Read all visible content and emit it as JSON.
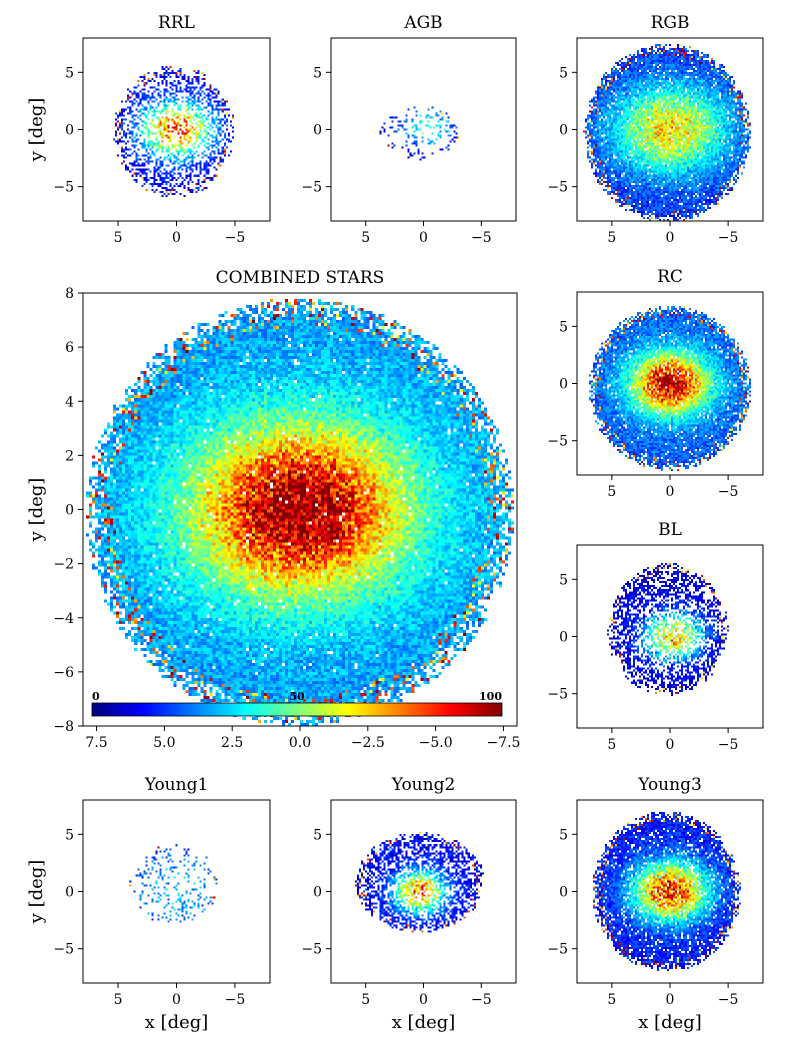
{
  "chart_data": [
    {
      "id": "rrl",
      "type": "heatmap",
      "title": "RRL",
      "xlabel": "",
      "ylabel": "y [deg]",
      "xlim": [
        8,
        -8
      ],
      "ylim": [
        -8,
        8
      ],
      "xticks": [
        5,
        0,
        -5
      ],
      "yticks": [
        5,
        0,
        -5
      ],
      "xtick_labels": [
        "5",
        "0",
        "−5"
      ],
      "ytick_labels": [
        "5",
        "0",
        "−5"
      ],
      "extent": {
        "rx": 5.2,
        "ry": 5.8,
        "cx": 0.2,
        "cy": -0.2,
        "peak_x": 0,
        "peak_y": 0,
        "peak": 90,
        "spread": 2.0,
        "bg": 12,
        "density": 0.45
      }
    },
    {
      "id": "agb",
      "type": "heatmap",
      "title": "AGB",
      "xlabel": "",
      "ylabel": "",
      "xlim": [
        8,
        -8
      ],
      "ylim": [
        -8,
        8
      ],
      "xticks": [
        5,
        0,
        -5
      ],
      "yticks": [
        5,
        0,
        -5
      ],
      "xtick_labels": [
        "5",
        "0",
        "−5"
      ],
      "ytick_labels": [
        "5",
        "0",
        "−5"
      ],
      "extent": {
        "rx": 3.5,
        "ry": 2.4,
        "cx": 0.3,
        "cy": -0.3,
        "peak_x": -0.3,
        "peak_y": 0.2,
        "peak": 45,
        "spread": 1.6,
        "bg": 8,
        "density": 0.22
      }
    },
    {
      "id": "rgb",
      "type": "heatmap",
      "title": "RGB",
      "xlabel": "",
      "ylabel": "",
      "xlim": [
        8,
        -8
      ],
      "ylim": [
        -8,
        8
      ],
      "xticks": [
        5,
        0,
        -5
      ],
      "yticks": [
        5,
        0,
        -5
      ],
      "xtick_labels": [
        "5",
        "0",
        "−5"
      ],
      "ytick_labels": [
        "5",
        "0",
        "−5"
      ],
      "extent": {
        "rx": 7.2,
        "ry": 7.8,
        "cx": 0.2,
        "cy": -0.3,
        "peak_x": 0,
        "peak_y": 0,
        "peak": 62,
        "spread": 3.2,
        "bg": 18,
        "density": 0.95
      }
    },
    {
      "id": "combined",
      "type": "heatmap",
      "title": "COMBINED STARS",
      "xlabel": "",
      "ylabel": "y [deg]",
      "xlim": [
        8,
        -8
      ],
      "ylim": [
        -8,
        8
      ],
      "xticks": [
        7.5,
        5.0,
        2.5,
        0.0,
        -2.5,
        -5.0,
        -7.5
      ],
      "yticks": [
        8,
        6,
        4,
        2,
        0,
        -2,
        -4,
        -6,
        -8
      ],
      "xtick_labels": [
        "7.5",
        "5.0",
        "2.5",
        "0.0",
        "−2.5",
        "−5.0",
        "−7.5"
      ],
      "ytick_labels": [
        "8",
        "6",
        "4",
        "2",
        "0",
        "−2",
        "−4",
        "−6",
        "−8"
      ],
      "extent": {
        "rx": 7.9,
        "ry": 7.9,
        "cx": 0.0,
        "cy": -0.1,
        "peak_x": 0,
        "peak_y": 0,
        "peak": 95,
        "spread": 2.7,
        "bg": 28,
        "density": 0.98
      }
    },
    {
      "id": "rc",
      "type": "heatmap",
      "title": "RC",
      "xlabel": "",
      "ylabel": "",
      "xlim": [
        8,
        -8
      ],
      "ylim": [
        -8,
        8
      ],
      "xticks": [
        5,
        0,
        -5
      ],
      "yticks": [
        5,
        0,
        -5
      ],
      "xtick_labels": [
        "5",
        "0",
        "−5"
      ],
      "ytick_labels": [
        "5",
        "0",
        "−5"
      ],
      "extent": {
        "rx": 7.0,
        "ry": 7.2,
        "cx": 0.0,
        "cy": -0.4,
        "peak_x": 0,
        "peak_y": 0,
        "peak": 95,
        "spread": 2.3,
        "bg": 22,
        "density": 0.95
      }
    },
    {
      "id": "bl",
      "type": "heatmap",
      "title": "BL",
      "xlabel": "",
      "ylabel": "",
      "xlim": [
        8,
        -8
      ],
      "ylim": [
        -8,
        8
      ],
      "xticks": [
        5,
        0,
        -5
      ],
      "yticks": [
        5,
        0,
        -5
      ],
      "xtick_labels": [
        "5",
        "0",
        "−5"
      ],
      "ytick_labels": [
        "5",
        "0",
        "−5"
      ],
      "extent": {
        "rx": 5.2,
        "ry": 5.8,
        "cx": 0.2,
        "cy": 0.6,
        "peak_x": -0.3,
        "peak_y": 0,
        "peak": 75,
        "spread": 1.7,
        "bg": 10,
        "density": 0.55
      }
    },
    {
      "id": "young1",
      "type": "heatmap",
      "title": "Young1",
      "xlabel": "x [deg]",
      "ylabel": "y [deg]",
      "xlim": [
        8,
        -8
      ],
      "ylim": [
        -8,
        8
      ],
      "xticks": [
        5,
        0,
        -5
      ],
      "yticks": [
        5,
        0,
        -5
      ],
      "xtick_labels": [
        "5",
        "0",
        "−5"
      ],
      "ytick_labels": [
        "5",
        "0",
        "−5"
      ],
      "extent": {
        "rx": 3.8,
        "ry": 3.6,
        "cx": 0.2,
        "cy": 0.6,
        "peak_x": 0,
        "peak_y": 0,
        "peak": 22,
        "spread": 3.0,
        "bg": 14,
        "density": 0.16
      }
    },
    {
      "id": "young2",
      "type": "heatmap",
      "title": "Young2",
      "xlabel": "x [deg]",
      "ylabel": "",
      "xlim": [
        8,
        -8
      ],
      "ylim": [
        -8,
        8
      ],
      "xticks": [
        5,
        0,
        -5
      ],
      "yticks": [
        5,
        0,
        -5
      ],
      "xtick_labels": [
        "5",
        "0",
        "−5"
      ],
      "ytick_labels": [
        "5",
        "0",
        "−5"
      ],
      "extent": {
        "rx": 5.6,
        "ry": 4.4,
        "cx": 0.3,
        "cy": 0.8,
        "peak_x": 0.3,
        "peak_y": 0,
        "peak": 85,
        "spread": 1.5,
        "bg": 12,
        "density": 0.6
      }
    },
    {
      "id": "young3",
      "type": "heatmap",
      "title": "Young3",
      "xlabel": "x [deg]",
      "ylabel": "",
      "xlim": [
        8,
        -8
      ],
      "ylim": [
        -8,
        8
      ],
      "xticks": [
        5,
        0,
        -5
      ],
      "yticks": [
        5,
        0,
        -5
      ],
      "xtick_labels": [
        "5",
        "0",
        "−5"
      ],
      "ytick_labels": [
        "5",
        "0",
        "−5"
      ],
      "extent": {
        "rx": 6.4,
        "ry": 7.0,
        "cx": 0.3,
        "cy": 0.0,
        "peak_x": 0,
        "peak_y": 0,
        "peak": 90,
        "spread": 2.2,
        "bg": 15,
        "density": 0.9
      }
    }
  ],
  "colorbar": {
    "colormap": "jet",
    "min": 0,
    "max": 100,
    "min_label": "0",
    "mid_label": "50",
    "max_label": "100",
    "stops": [
      "#00007f",
      "#0000ff",
      "#007fff",
      "#00ffff",
      "#7fff7f",
      "#ffff00",
      "#ff7f00",
      "#ff0000",
      "#7f0000"
    ]
  }
}
